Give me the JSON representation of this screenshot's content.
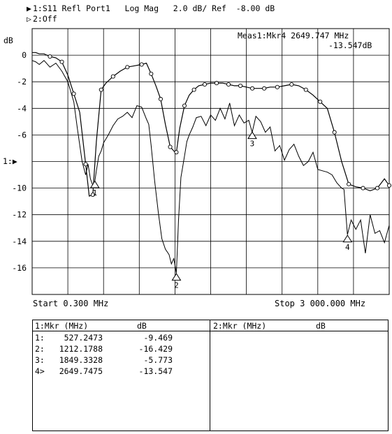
{
  "header": {
    "line1_marker": "▶",
    "line1": "1:S11 Refl Port1   Log Mag   2.0 dB/ Ref  -8.00 dB",
    "line2_marker": "▷",
    "line2": "2:Off"
  },
  "readout": {
    "line1": "Meas1:Mkr4 2649.747 MHz",
    "line2": "-13.547dB"
  },
  "axis": {
    "unit": "dB",
    "ref_label": "1:",
    "start": "Start 0.300 MHz",
    "stop": "Stop 3 000.000 MHz"
  },
  "chart_data": {
    "type": "line",
    "xlim": [
      0.3,
      3000
    ],
    "ylim": [
      -18,
      2
    ],
    "x_unit": "MHz",
    "ylabel": "dB",
    "ytick_labels": [
      "0",
      "-2",
      "-4",
      "-6",
      "-8",
      "-10",
      "-12",
      "-14",
      "-16"
    ],
    "yticks": [
      0,
      -2,
      -4,
      -6,
      -8,
      -10,
      -12,
      -14,
      -16
    ],
    "reference_level": -8,
    "grid": true,
    "series": [
      {
        "name": "",
        "style": "raw",
        "x": [
          0.3,
          30,
          60,
          100,
          150,
          200,
          250,
          300,
          350,
          380,
          420,
          450,
          470,
          490,
          510,
          527,
          540,
          560,
          580,
          600,
          640,
          680,
          720,
          760,
          800,
          840,
          880,
          920,
          960,
          980,
          1000,
          1030,
          1060,
          1090,
          1120,
          1150,
          1170,
          1190,
          1212,
          1230,
          1250,
          1280,
          1300,
          1320,
          1350,
          1380,
          1420,
          1460,
          1500,
          1540,
          1580,
          1620,
          1660,
          1700,
          1740,
          1780,
          1820,
          1849,
          1880,
          1920,
          1960,
          2000,
          2040,
          2080,
          2120,
          2160,
          2200,
          2240,
          2280,
          2320,
          2360,
          2400,
          2440,
          2480,
          2520,
          2560,
          2600,
          2620,
          2649,
          2680,
          2720,
          2760,
          2800,
          2840,
          2880,
          2920,
          2960,
          3000
        ],
        "y": [
          -0.4,
          -0.5,
          -0.7,
          -0.4,
          -0.9,
          -0.6,
          -1.2,
          -2.0,
          -3.5,
          -5.5,
          -8.0,
          -9.0,
          -8.2,
          -9.3,
          -9.8,
          -9.5,
          -8.7,
          -7.6,
          -7.2,
          -6.6,
          -6.0,
          -5.3,
          -4.8,
          -4.6,
          -4.3,
          -4.7,
          -3.8,
          -3.9,
          -4.8,
          -5.2,
          -6.8,
          -9.5,
          -11.8,
          -13.8,
          -14.6,
          -15.0,
          -15.7,
          -15.3,
          -16.4,
          -12.4,
          -9.2,
          -7.6,
          -6.5,
          -6.0,
          -5.4,
          -4.7,
          -4.6,
          -5.3,
          -4.5,
          -4.9,
          -4.0,
          -4.8,
          -3.6,
          -5.3,
          -4.5,
          -5.1,
          -4.9,
          -5.8,
          -4.6,
          -5.0,
          -5.8,
          -5.4,
          -7.2,
          -6.8,
          -7.9,
          -7.1,
          -6.7,
          -7.6,
          -8.3,
          -8.0,
          -7.3,
          -8.6,
          -8.7,
          -8.8,
          -9.0,
          -9.6,
          -10.0,
          -10.1,
          -13.5,
          -12.4,
          -13.1,
          -12.4,
          -14.9,
          -12.0,
          -13.4,
          -13.2,
          -14.1,
          -12.8
        ]
      },
      {
        "name": "",
        "style": "smoothed",
        "x": [
          0.3,
          30,
          60,
          100,
          150,
          200,
          250,
          300,
          350,
          400,
          450,
          480,
          510,
          540,
          580,
          620,
          680,
          740,
          800,
          860,
          920,
          960,
          1000,
          1040,
          1080,
          1120,
          1160,
          1200,
          1212,
          1240,
          1280,
          1320,
          1360,
          1400,
          1450,
          1500,
          1550,
          1600,
          1650,
          1700,
          1750,
          1800,
          1850,
          1900,
          1950,
          2000,
          2060,
          2120,
          2180,
          2240,
          2300,
          2360,
          2420,
          2480,
          2540,
          2600,
          2660,
          2720,
          2780,
          2840,
          2900,
          2960,
          3000
        ],
        "y": [
          0.2,
          0.2,
          0.1,
          0.1,
          -0.1,
          -0.2,
          -0.5,
          -1.5,
          -2.9,
          -4.3,
          -8.2,
          -10.6,
          -10.5,
          -6.5,
          -2.6,
          -2.1,
          -1.6,
          -1.2,
          -0.9,
          -0.8,
          -0.7,
          -0.6,
          -1.4,
          -2.3,
          -3.3,
          -5.2,
          -6.9,
          -7.3,
          -7.3,
          -5.5,
          -3.8,
          -3.0,
          -2.6,
          -2.3,
          -2.2,
          -2.1,
          -2.1,
          -2.1,
          -2.2,
          -2.3,
          -2.3,
          -2.4,
          -2.5,
          -2.5,
          -2.5,
          -2.4,
          -2.4,
          -2.3,
          -2.2,
          -2.3,
          -2.6,
          -3.0,
          -3.5,
          -4.0,
          -5.8,
          -8.0,
          -9.7,
          -9.9,
          -10.0,
          -10.2,
          -10.0,
          -9.3,
          -9.8
        ],
        "point_markers": true
      }
    ],
    "markers": [
      {
        "label": "1",
        "x": 527.2473,
        "y": -9.469
      },
      {
        "label": "2",
        "x": 1212.1788,
        "y": -16.429
      },
      {
        "label": "3",
        "x": 1849.3328,
        "y": -5.773
      },
      {
        "label": "4",
        "x": 2649.7475,
        "y": -13.547,
        "active": true
      }
    ]
  },
  "marker_table": {
    "left_header": "1:Mkr (MHz)",
    "left_header_unit": "dB",
    "right_header": "2:Mkr (MHz)",
    "right_header_unit": "dB",
    "rows": [
      {
        "id": "1:",
        "freq": "527.2473",
        "value": "-9.469"
      },
      {
        "id": "2:",
        "freq": "1212.1788",
        "value": "-16.429"
      },
      {
        "id": "3:",
        "freq": "1849.3328",
        "value": "-5.773"
      },
      {
        "id": "4>",
        "freq": "2649.7475",
        "value": "-13.547"
      }
    ]
  }
}
